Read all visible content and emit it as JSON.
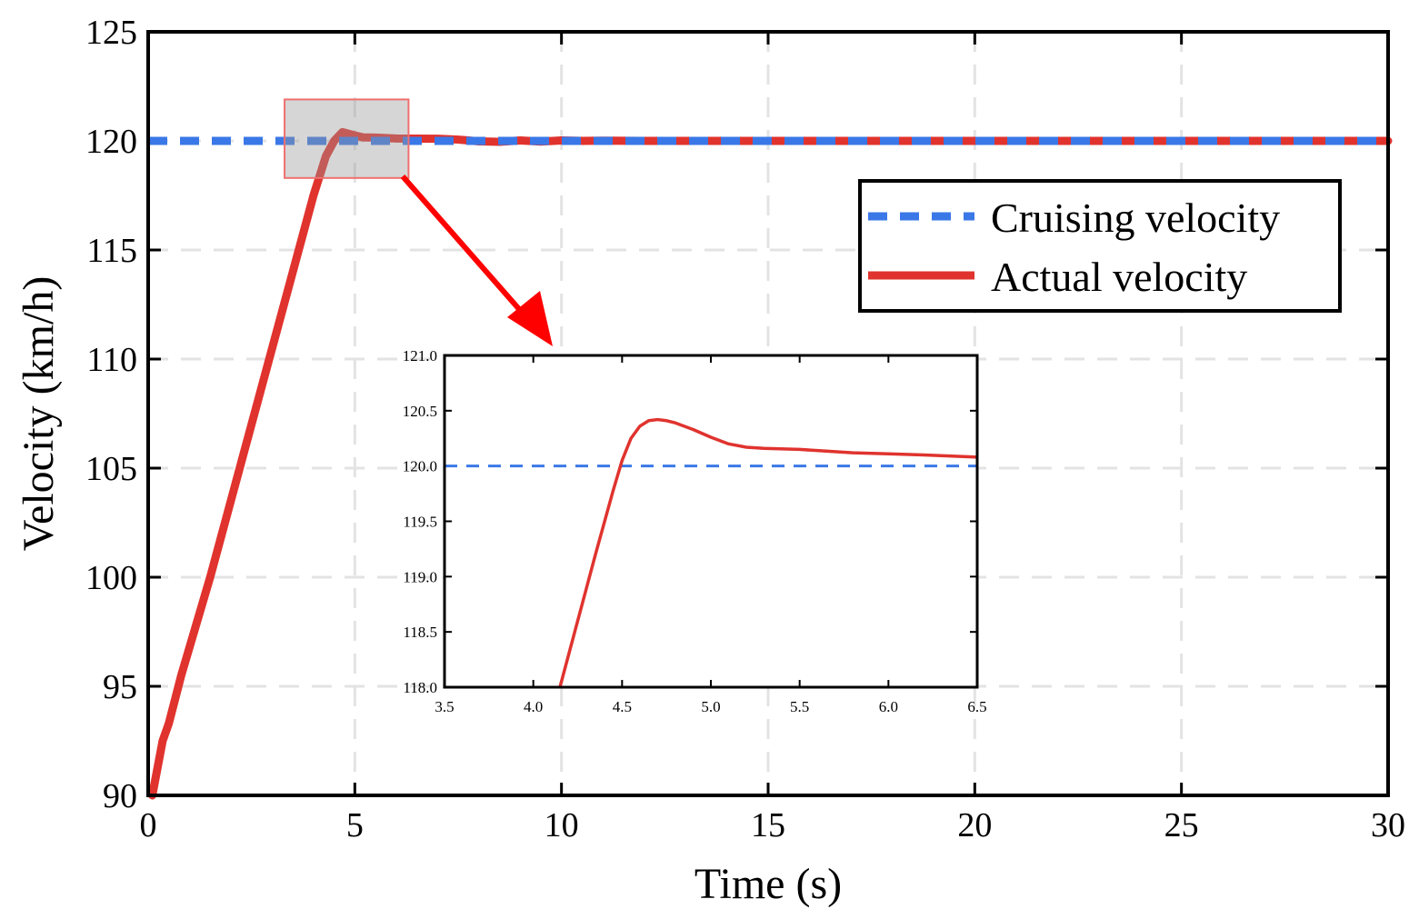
{
  "chart_data": [
    {
      "id": "main",
      "type": "line",
      "title": "",
      "xlabel": "Time (s)",
      "ylabel": "Velocity (km/h)",
      "xlim": [
        0,
        30
      ],
      "ylim": [
        90,
        125
      ],
      "xticks": [
        0,
        5,
        10,
        15,
        20,
        25,
        30
      ],
      "yticks": [
        90,
        95,
        100,
        105,
        110,
        115,
        120,
        125
      ],
      "grid": true,
      "legend_position": "upper-right",
      "series": [
        {
          "name": "Cruising velocity",
          "style": "dashed",
          "color": "#3b78e7",
          "x": [
            0,
            30
          ],
          "y": [
            120,
            120
          ]
        },
        {
          "name": "Actual velocity",
          "style": "solid",
          "color": "#e0332e",
          "x": [
            0.1,
            0.2,
            0.35,
            0.5,
            0.8,
            1.5,
            2.0,
            2.5,
            3.0,
            3.5,
            4.0,
            4.3,
            4.5,
            4.7,
            5.0,
            5.2,
            5.5,
            6.0,
            7.0,
            7.5,
            8.0,
            8.5,
            9.0,
            9.5,
            10.0,
            10.5,
            11.0,
            12.0,
            15.0,
            20.0,
            25.0,
            30.0
          ],
          "y": [
            90.0,
            91.0,
            92.5,
            93.3,
            95.5,
            100.0,
            103.5,
            107.0,
            110.5,
            114.0,
            117.5,
            119.3,
            120.0,
            120.4,
            120.25,
            120.16,
            120.15,
            120.11,
            120.1,
            120.06,
            119.98,
            119.96,
            120.02,
            119.97,
            120.02,
            120.0,
            120.01,
            120.0,
            120.0,
            120.0,
            120.0,
            120.0
          ]
        }
      ],
      "zoom_box": {
        "x": [
          3.3,
          6.3
        ],
        "y": [
          118.3,
          121.9
        ]
      }
    },
    {
      "id": "inset",
      "type": "line",
      "title": "",
      "xlabel": "",
      "ylabel": "",
      "xlim": [
        3.5,
        6.5
      ],
      "ylim": [
        118.0,
        121.0
      ],
      "xticks": [
        "3.5",
        "4.0",
        "4.5",
        "5.0",
        "5.5",
        "6.0",
        "6.5"
      ],
      "yticks": [
        "118.0",
        "118.5",
        "119.0",
        "119.5",
        "120.0",
        "120.5",
        "121.0"
      ],
      "grid": false,
      "series": [
        {
          "name": "Cruising velocity",
          "style": "dashed",
          "color": "#3b78e7",
          "x": [
            3.5,
            6.5
          ],
          "y": [
            120.0,
            120.0
          ]
        },
        {
          "name": "Actual velocity",
          "style": "solid",
          "color": "#e0332e",
          "x": [
            4.15,
            4.25,
            4.35,
            4.45,
            4.5,
            4.55,
            4.6,
            4.65,
            4.7,
            4.75,
            4.8,
            4.9,
            5.0,
            5.1,
            5.2,
            5.3,
            5.5,
            5.8,
            6.0,
            6.2,
            6.5
          ],
          "y": [
            118.0,
            118.6,
            119.2,
            119.78,
            120.05,
            120.25,
            120.36,
            120.41,
            120.42,
            120.41,
            120.39,
            120.33,
            120.26,
            120.2,
            120.17,
            120.16,
            120.15,
            120.12,
            120.11,
            120.1,
            120.08
          ]
        }
      ]
    }
  ]
}
